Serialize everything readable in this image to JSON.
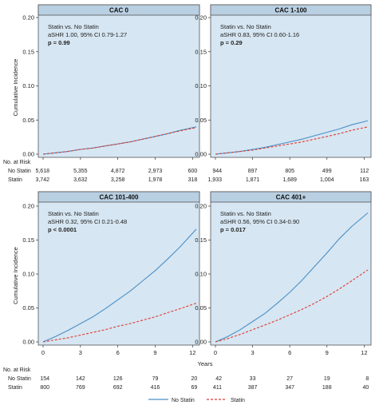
{
  "chart_data": {
    "type": "line",
    "ylabel": "Cumulative Incidence",
    "xlabel": "Years",
    "risk_header": "No. at Risk",
    "legend": [
      {
        "name": "No Statin",
        "color": "#4a90c8",
        "style": "solid"
      },
      {
        "name": "Statin",
        "color": "#e03a30",
        "style": "dashed"
      }
    ],
    "panels": [
      {
        "title": "CAC 0",
        "annotation": [
          "Statin vs. No Statin",
          "aSHR 1.00, 95% CI 0.79-1.27",
          "p = 0.99"
        ],
        "ylim": [
          0,
          0.2
        ],
        "yticks": [
          "0.00",
          "0.05",
          "0.10",
          "0.15",
          "0.20"
        ],
        "xlim": [
          0,
          12.3
        ],
        "xticks": [
          "0",
          "3",
          "6",
          "9",
          "12"
        ],
        "show_xticks": false,
        "series": [
          {
            "name": "No Statin",
            "x": [
              0,
              1,
              2,
              3,
              4,
              5,
              6,
              7,
              8,
              9,
              10,
              11,
              12.3
            ],
            "y": [
              0,
              0.002,
              0.004,
              0.007,
              0.009,
              0.012,
              0.015,
              0.018,
              0.022,
              0.026,
              0.03,
              0.035,
              0.04
            ]
          },
          {
            "name": "Statin",
            "x": [
              0,
              1,
              2,
              3,
              4,
              5,
              6,
              7,
              8,
              9,
              10,
              11,
              12.3
            ],
            "y": [
              0,
              0.002,
              0.004,
              0.007,
              0.009,
              0.012,
              0.015,
              0.018,
              0.022,
              0.026,
              0.03,
              0.034,
              0.039
            ]
          }
        ],
        "risk": {
          "rows": [
            {
              "label": "No Statin",
              "values": [
                "5,618",
                "5,355",
                "4,872",
                "2,973",
                "600"
              ]
            },
            {
              "label": "Statin",
              "values": [
                "3,742",
                "3,632",
                "3,258",
                "1,978",
                "318"
              ]
            }
          ]
        }
      },
      {
        "title": "CAC 1-100",
        "annotation": [
          "Statin vs. No Statin",
          "aSHR 0.83, 95% CI 0.60-1.16",
          "p = 0.29"
        ],
        "ylim": [
          0,
          0.2
        ],
        "yticks": [
          "0.00",
          "0.05",
          "0.10",
          "0.15",
          "0.20"
        ],
        "xlim": [
          0,
          12.3
        ],
        "xticks": [
          "0",
          "3",
          "6",
          "9",
          "12"
        ],
        "show_xticks": false,
        "series": [
          {
            "name": "No Statin",
            "x": [
              0,
              1,
              2,
              3,
              4,
              5,
              6,
              7,
              8,
              9,
              10,
              11,
              12.3
            ],
            "y": [
              0,
              0.002,
              0.004,
              0.007,
              0.01,
              0.014,
              0.018,
              0.022,
              0.027,
              0.032,
              0.037,
              0.043,
              0.049
            ]
          },
          {
            "name": "Statin",
            "x": [
              0,
              1,
              2,
              3,
              4,
              5,
              6,
              7,
              8,
              9,
              10,
              11,
              12.3
            ],
            "y": [
              0,
              0.002,
              0.004,
              0.006,
              0.009,
              0.012,
              0.015,
              0.018,
              0.022,
              0.026,
              0.03,
              0.035,
              0.04
            ]
          }
        ],
        "risk": {
          "rows": [
            {
              "label": "No Statin",
              "values": [
                "944",
                "897",
                "805",
                "499",
                "112"
              ]
            },
            {
              "label": "Statin",
              "values": [
                "1,933",
                "1,871",
                "1,689",
                "1,004",
                "163"
              ]
            }
          ]
        }
      },
      {
        "title": "CAC 101-400",
        "annotation": [
          "Statin vs. No Statin",
          "aSHR 0.32, 95% CI 0.21-0.48",
          "p < 0.0001"
        ],
        "ylim": [
          0,
          0.2
        ],
        "yticks": [
          "0.00",
          "0.05",
          "0.10",
          "0.15",
          "0.20"
        ],
        "xlim": [
          0,
          12.3
        ],
        "xticks": [
          "0",
          "3",
          "6",
          "9",
          "12"
        ],
        "show_xticks": true,
        "series": [
          {
            "name": "No Statin",
            "x": [
              0,
              1,
              2,
              3,
              4,
              5,
              6,
              7,
              8,
              9,
              10,
              11,
              12.3
            ],
            "y": [
              0,
              0.008,
              0.017,
              0.027,
              0.037,
              0.049,
              0.062,
              0.075,
              0.09,
              0.105,
              0.122,
              0.14,
              0.166
            ]
          },
          {
            "name": "Statin",
            "x": [
              0,
              1,
              2,
              3,
              4,
              5,
              6,
              7,
              8,
              9,
              10,
              11,
              12.3
            ],
            "y": [
              0,
              0.003,
              0.006,
              0.01,
              0.014,
              0.018,
              0.023,
              0.027,
              0.032,
              0.037,
              0.043,
              0.049,
              0.057
            ]
          }
        ],
        "risk": {
          "rows": [
            {
              "label": "No Statin",
              "values": [
                "154",
                "142",
                "126",
                "79",
                "20"
              ]
            },
            {
              "label": "Statin",
              "values": [
                "800",
                "769",
                "692",
                "416",
                "69"
              ]
            }
          ]
        }
      },
      {
        "title": "CAC 401+",
        "annotation": [
          "Statin vs. No Statin",
          "aSHR 0.56, 95% CI 0.34-0.90",
          "p = 0.017"
        ],
        "ylim": [
          0,
          0.2
        ],
        "yticks": [
          "0.00",
          "0.05",
          "0.10",
          "0.15",
          "0.20"
        ],
        "xlim": [
          0,
          12.3
        ],
        "xticks": [
          "0",
          "3",
          "6",
          "9",
          "12"
        ],
        "show_xticks": true,
        "series": [
          {
            "name": "No Statin",
            "x": [
              0,
              1,
              2,
              3,
              4,
              5,
              6,
              7,
              8,
              9,
              10,
              11,
              12.3
            ],
            "y": [
              0,
              0.008,
              0.018,
              0.03,
              0.042,
              0.057,
              0.073,
              0.091,
              0.111,
              0.131,
              0.152,
              0.17,
              0.19
            ]
          },
          {
            "name": "Statin",
            "x": [
              0,
              1,
              2,
              3,
              4,
              5,
              6,
              7,
              8,
              9,
              10,
              11,
              12.3
            ],
            "y": [
              0,
              0.005,
              0.011,
              0.018,
              0.025,
              0.032,
              0.04,
              0.048,
              0.057,
              0.067,
              0.078,
              0.09,
              0.106
            ]
          }
        ],
        "risk": {
          "rows": [
            {
              "label": "No Statin",
              "values": [
                "42",
                "33",
                "27",
                "19",
                "8"
              ]
            },
            {
              "label": "Statin",
              "values": [
                "411",
                "387",
                "347",
                "188",
                "40"
              ]
            }
          ]
        }
      }
    ]
  }
}
